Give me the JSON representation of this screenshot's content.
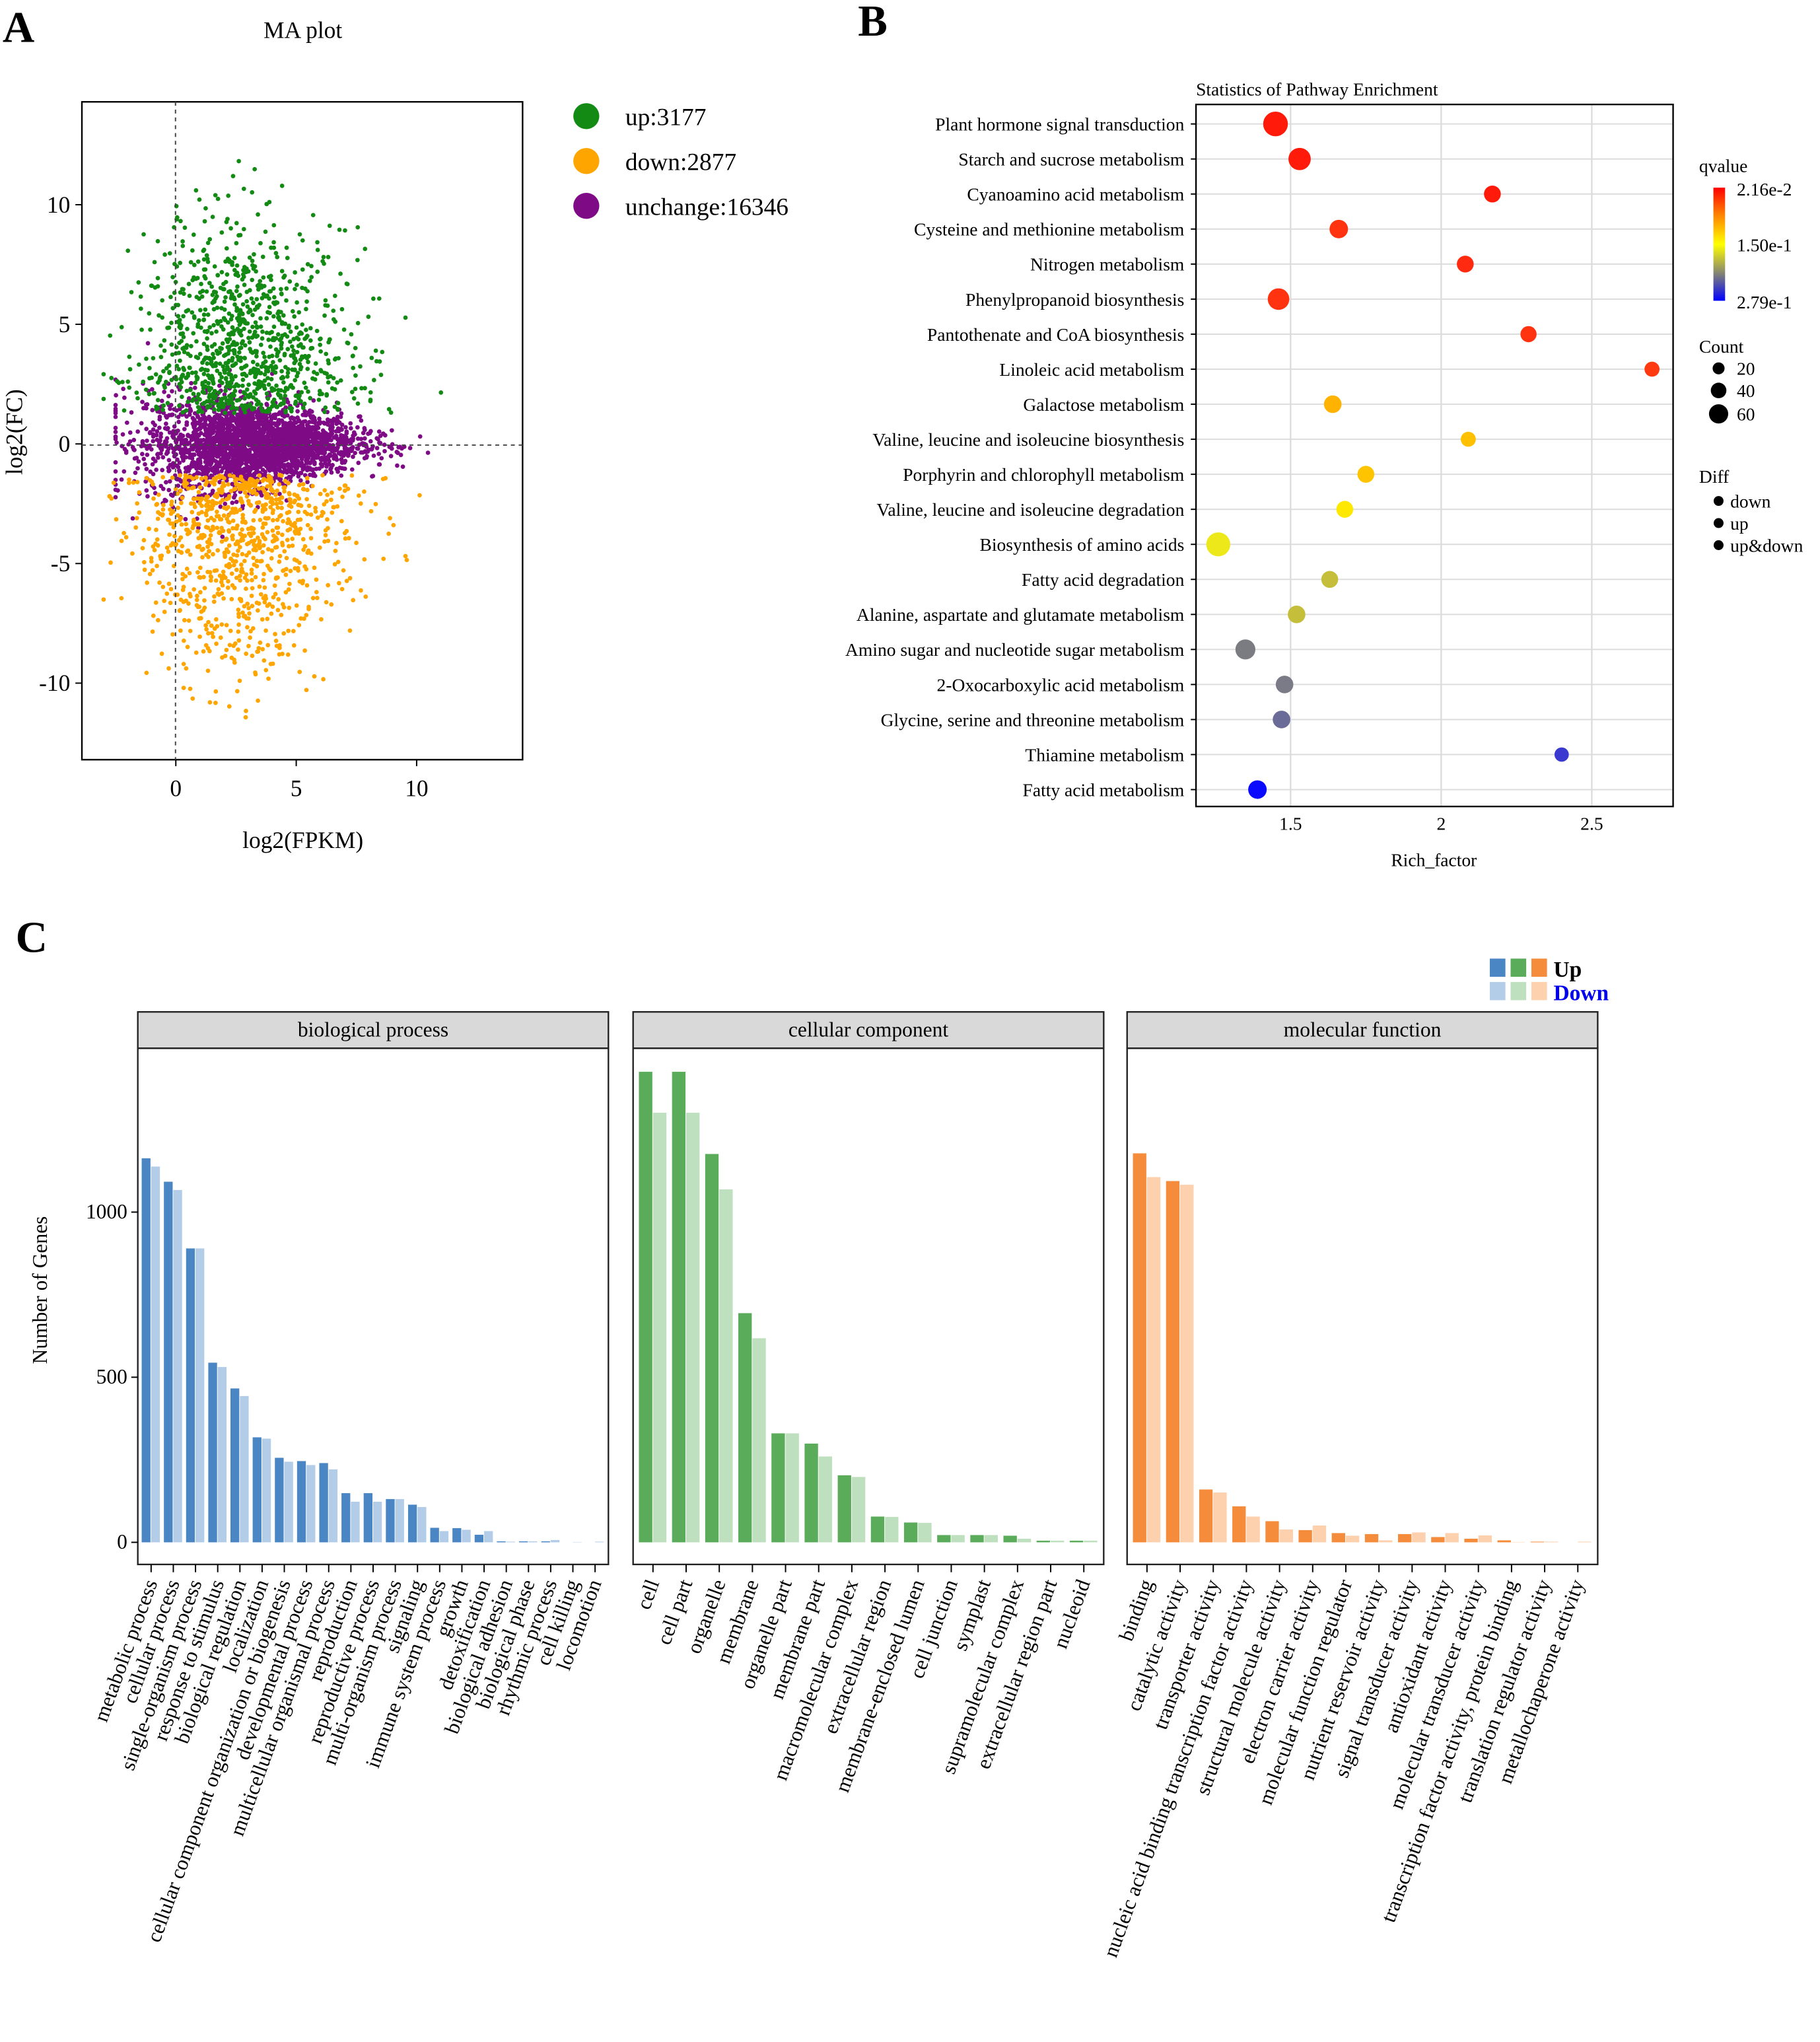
{
  "panel_letters": {
    "a": "A",
    "b": "B",
    "c": "C"
  },
  "chart_data": [
    {
      "type": "scatter",
      "title": "MA plot",
      "xlabel": "log2(FPKM)",
      "ylabel": "log2(FC)",
      "xlim": [
        -3.9,
        14.4
      ],
      "ylim": [
        -13.2,
        14.3
      ],
      "xticks": [
        "0",
        "5",
        "10"
      ],
      "xtick_values": [
        0,
        5,
        10
      ],
      "yticks": [
        "-10",
        "-5",
        "0",
        "5",
        "10"
      ],
      "ytick_values": [
        -10,
        -5,
        0,
        5,
        10
      ],
      "reference_lines": {
        "x": 0,
        "y": 0
      },
      "legend": [
        {
          "label": "up:3177",
          "group": "up",
          "count": 3177,
          "color": "#138a13"
        },
        {
          "label": "down:2877",
          "group": "down",
          "count": 2877,
          "color": "#ffa500"
        },
        {
          "label": "unchange:16346",
          "group": "unchange",
          "count": 16346,
          "color": "#7f0a86"
        }
      ]
    },
    {
      "type": "scatter",
      "title": "Statistics of Pathway Enrichment",
      "xlabel": "Rich_factor",
      "xlim": [
        1.186,
        2.77
      ],
      "xticks": [
        "1.5",
        "2",
        "2.5"
      ],
      "xtick_values": [
        1.5,
        2,
        2.5
      ],
      "pathways": [
        {
          "name": "Plant hormone signal transduction",
          "rich_factor": 1.45,
          "count": 90,
          "color": "#ff1a0a"
        },
        {
          "name": "Starch and sucrose metabolism",
          "rich_factor": 1.53,
          "count": 77,
          "color": "#ff1a0a"
        },
        {
          "name": "Cyanoamino acid metabolism",
          "rich_factor": 2.17,
          "count": 47,
          "color": "#ff1a0a"
        },
        {
          "name": "Cysteine and methionine metabolism",
          "rich_factor": 1.66,
          "count": 56,
          "color": "#ff3310"
        },
        {
          "name": "Nitrogen metabolism",
          "rich_factor": 2.08,
          "count": 47,
          "color": "#ff2a10"
        },
        {
          "name": "Phenylpropanoid biosynthesis",
          "rich_factor": 1.46,
          "count": 73,
          "color": "#ff3310"
        },
        {
          "name": "Pantothenate and CoA biosynthesis",
          "rich_factor": 2.29,
          "count": 43,
          "color": "#ff3310"
        },
        {
          "name": "Linoleic acid metabolism",
          "rich_factor": 2.7,
          "count": 37,
          "color": "#ff3a10"
        },
        {
          "name": "Galactose metabolism",
          "rich_factor": 1.64,
          "count": 51,
          "color": "#ffb300"
        },
        {
          "name": "Valine, leucine and isoleucine biosynthesis",
          "rich_factor": 2.09,
          "count": 37,
          "color": "#ffc000"
        },
        {
          "name": "Porphyrin and chlorophyll metabolism",
          "rich_factor": 1.75,
          "count": 47,
          "color": "#ffc400"
        },
        {
          "name": "Valine, leucine and isoleucine degradation",
          "rich_factor": 1.68,
          "count": 47,
          "color": "#ffe800"
        },
        {
          "name": "Biosynthesis of amino acids",
          "rich_factor": 1.26,
          "count": 86,
          "color": "#ece81a"
        },
        {
          "name": "Fatty acid degradation",
          "rich_factor": 1.63,
          "count": 47,
          "color": "#c4be3a"
        },
        {
          "name": "Alanine, aspartate and glutamate metabolism",
          "rich_factor": 1.52,
          "count": 51,
          "color": "#c4be3a"
        },
        {
          "name": "Amino sugar and nucleotide sugar metabolism",
          "rich_factor": 1.35,
          "count": 64,
          "color": "#7b7b82"
        },
        {
          "name": "2-Oxocarboxylic acid metabolism",
          "rich_factor": 1.48,
          "count": 51,
          "color": "#7b7b88"
        },
        {
          "name": "Glycine, serine and threonine metabolism",
          "rich_factor": 1.47,
          "count": 51,
          "color": "#6b6b98"
        },
        {
          "name": "Thiamine metabolism",
          "rich_factor": 2.4,
          "count": 33,
          "color": "#3a3ad0"
        },
        {
          "name": "Fatty acid metabolism",
          "rich_factor": 1.39,
          "count": 56,
          "color": "#0a0aff"
        }
      ],
      "legend": {
        "qvalue_title": "qvalue",
        "qvalue_labels": [
          "2.16e-2",
          "1.50e-1",
          "2.79e-1"
        ],
        "qvalue_colors": [
          "#ff0000",
          "#ffff00",
          "#0000ff"
        ],
        "count_title": "Count",
        "count_labels": [
          "20",
          "40",
          "60"
        ],
        "count_values": [
          20,
          40,
          60
        ],
        "diff_title": "Diff",
        "diff_labels": [
          "down",
          "up",
          "up&down"
        ]
      }
    },
    {
      "type": "bar",
      "ylabel": "Number of Genes",
      "ylim": [
        0,
        1600
      ],
      "yticks": [
        "0",
        "500",
        "1000"
      ],
      "ytick_values": [
        0,
        500,
        1000
      ],
      "legend": {
        "up": "Up",
        "down": "Down"
      },
      "facets": [
        {
          "title": "biological process",
          "up_color": "#4a86c4",
          "down_color": "#b3cde8",
          "categories": [
            "metabolic process",
            "cellular process",
            "single-organism process",
            "response to stimulus",
            "biological regulation",
            "localization",
            "cellular component organization or biogenesis",
            "developmental process",
            "multicellular organismal process",
            "reproduction",
            "reproductive process",
            "multi-organism process",
            "signaling",
            "immune system process",
            "growth",
            "detoxification",
            "biological adhesion",
            "biological phase",
            "rhythmic process",
            "cell killing",
            "locomotion"
          ],
          "up": [
            1163,
            1092,
            890,
            544,
            466,
            318,
            256,
            246,
            240,
            149,
            149,
            131,
            114,
            44,
            43,
            23,
            3,
            3,
            3,
            0,
            0
          ],
          "down": [
            1138,
            1067,
            890,
            531,
            443,
            314,
            244,
            234,
            221,
            123,
            123,
            131,
            107,
            34,
            38,
            34,
            2,
            3,
            7,
            1,
            2
          ]
        },
        {
          "title": "cellular component",
          "up_color": "#5aab5a",
          "down_color": "#bfe0bf",
          "categories": [
            "cell",
            "cell part",
            "organelle",
            "membrane",
            "organelle part",
            "membrane part",
            "macromolecular complex",
            "extracellular region",
            "membrane-enclosed lumen",
            "cell junction",
            "symplast",
            "supramolecular complex",
            "extracellular region part",
            "nucleoid"
          ],
          "up": [
            1425,
            1425,
            1176,
            694,
            330,
            299,
            203,
            78,
            60,
            22,
            22,
            20,
            5,
            5
          ],
          "down": [
            1301,
            1301,
            1069,
            618,
            330,
            260,
            198,
            77,
            59,
            22,
            22,
            11,
            5,
            5
          ]
        },
        {
          "title": "molecular function",
          "up_color": "#f58c3c",
          "down_color": "#fdd0ae",
          "categories": [
            "binding",
            "catalytic activity",
            "transporter activity",
            "nucleic acid binding transcription factor activity",
            "structural molecule activity",
            "electron carrier activity",
            "molecular function regulator",
            "nutrient reservoir activity",
            "signal transducer activity",
            "antioxidant activity",
            "molecular transducer activity",
            "transcription factor activity, protein binding",
            "translation regulator activity",
            "metallochaperone activity"
          ],
          "up": [
            1178,
            1094,
            160,
            109,
            64,
            37,
            28,
            25,
            25,
            16,
            11,
            6,
            2,
            0
          ],
          "down": [
            1106,
            1083,
            151,
            78,
            39,
            51,
            20,
            6,
            30,
            28,
            21,
            1,
            2,
            2
          ]
        }
      ]
    }
  ]
}
